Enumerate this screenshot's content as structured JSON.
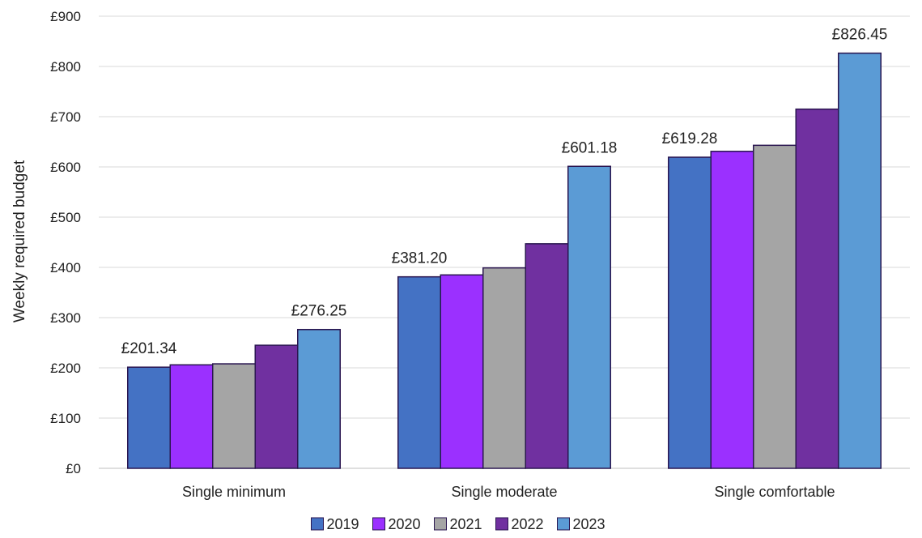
{
  "chart_data": {
    "type": "bar",
    "title": "",
    "xlabel": "",
    "ylabel": "Weekly required budget",
    "ylim": [
      0,
      900
    ],
    "yticks": [
      {
        "value": 0,
        "label": "£0"
      },
      {
        "value": 100,
        "label": "£100"
      },
      {
        "value": 200,
        "label": "£200"
      },
      {
        "value": 300,
        "label": "£300"
      },
      {
        "value": 400,
        "label": "£400"
      },
      {
        "value": 500,
        "label": "£500"
      },
      {
        "value": 600,
        "label": "£600"
      },
      {
        "value": 700,
        "label": "£700"
      },
      {
        "value": 800,
        "label": "£800"
      },
      {
        "value": 900,
        "label": "£900"
      }
    ],
    "grid": true,
    "legend_position": "bottom",
    "categories": [
      "Single minimum",
      "Single moderate",
      "Single comfortable"
    ],
    "series": [
      {
        "name": "2019",
        "color": "#4472c4",
        "values": [
          201.34,
          381.2,
          619.28
        ]
      },
      {
        "name": "2020",
        "color": "#9b30ff",
        "values": [
          206,
          385,
          631
        ]
      },
      {
        "name": "2021",
        "color": "#a5a5a5",
        "values": [
          208,
          399,
          643
        ]
      },
      {
        "name": "2022",
        "color": "#7030a0",
        "values": [
          245,
          447,
          715
        ]
      },
      {
        "name": "2023",
        "color": "#5b9bd5",
        "values": [
          276.25,
          601.18,
          826.45
        ]
      }
    ],
    "data_labels": [
      {
        "series": 0,
        "category": 0,
        "text": "£201.34"
      },
      {
        "series": 4,
        "category": 0,
        "text": "£276.25"
      },
      {
        "series": 0,
        "category": 1,
        "text": "£381.20"
      },
      {
        "series": 4,
        "category": 1,
        "text": "£601.18"
      },
      {
        "series": 0,
        "category": 2,
        "text": "£619.28"
      },
      {
        "series": 4,
        "category": 2,
        "text": "£826.45"
      }
    ]
  }
}
